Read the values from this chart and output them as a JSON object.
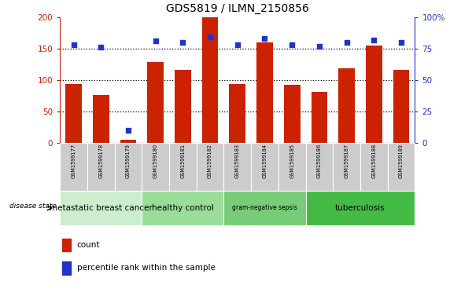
{
  "title": "GDS5819 / ILMN_2150856",
  "samples": [
    "GSM1599177",
    "GSM1599178",
    "GSM1599179",
    "GSM1599180",
    "GSM1599181",
    "GSM1599182",
    "GSM1599183",
    "GSM1599184",
    "GSM1599185",
    "GSM1599186",
    "GSM1599187",
    "GSM1599188",
    "GSM1599189"
  ],
  "counts": [
    93,
    76,
    5,
    128,
    116,
    200,
    93,
    160,
    92,
    81,
    118,
    155,
    116
  ],
  "percentiles": [
    78,
    76,
    10,
    81,
    80,
    84,
    78,
    83,
    78,
    77,
    80,
    82,
    80
  ],
  "disease_groups": [
    {
      "label": "metastatic breast cancer",
      "start": 0,
      "end": 3,
      "color": "#cceecc"
    },
    {
      "label": "healthy control",
      "start": 3,
      "end": 6,
      "color": "#99dd99"
    },
    {
      "label": "gram-negative sepsis",
      "start": 6,
      "end": 9,
      "color": "#77cc77"
    },
    {
      "label": "tuberculosis",
      "start": 9,
      "end": 13,
      "color": "#44bb44"
    }
  ],
  "ylim_left": [
    0,
    200
  ],
  "ylim_right": [
    0,
    100
  ],
  "yticks_left": [
    0,
    50,
    100,
    150,
    200
  ],
  "yticks_right": [
    0,
    25,
    50,
    75,
    100
  ],
  "ytick_labels_right": [
    "0",
    "25",
    "50",
    "75",
    "100%"
  ],
  "bar_color": "#cc2200",
  "dot_color": "#2233cc",
  "bg_color": "#ffffff",
  "sample_bg": "#cccccc",
  "left_axis_color": "#cc2200",
  "right_axis_color": "#2233cc",
  "legend_count_label": "count",
  "legend_pct_label": "percentile rank within the sample",
  "disease_state_label": "disease state"
}
